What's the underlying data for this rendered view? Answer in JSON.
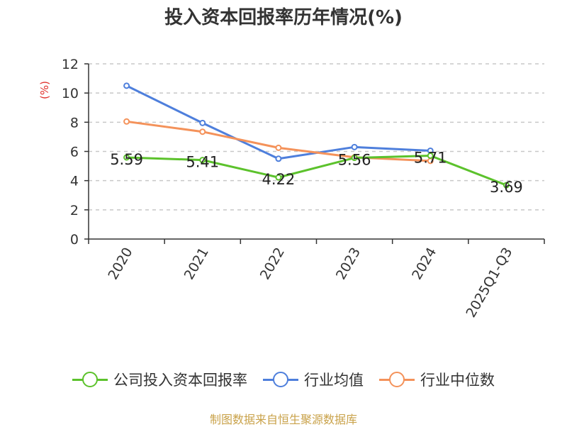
{
  "title": "投入资本回报率历年情况(%)",
  "source": "制图数据来自恒生聚源数据库",
  "chart_data": {
    "type": "line",
    "title": "投入资本回报率历年情况(%)",
    "ylabel": "(%)",
    "xlabel": "",
    "categories": [
      "2020",
      "2021",
      "2022",
      "2023",
      "2024",
      "2025Q1-Q3"
    ],
    "ylim": [
      0,
      12
    ],
    "yticks": [
      0,
      2,
      4,
      6,
      8,
      10,
      12
    ],
    "grid": true,
    "legend_position": "bottom",
    "series": [
      {
        "name": "公司投入资本回报率",
        "color": "#5cc22c",
        "values": [
          5.59,
          5.41,
          4.22,
          5.56,
          5.71,
          3.69
        ],
        "labels": [
          "5.59",
          "5.41",
          "4.22",
          "5.56",
          "5.71",
          "3.69"
        ]
      },
      {
        "name": "行业均值",
        "color": "#4e7fdc",
        "values": [
          10.5,
          7.95,
          5.5,
          6.3,
          6.05,
          null
        ]
      },
      {
        "name": "行业中位数",
        "color": "#f4925a",
        "values": [
          8.05,
          7.35,
          6.25,
          5.6,
          5.35,
          null
        ]
      }
    ]
  }
}
